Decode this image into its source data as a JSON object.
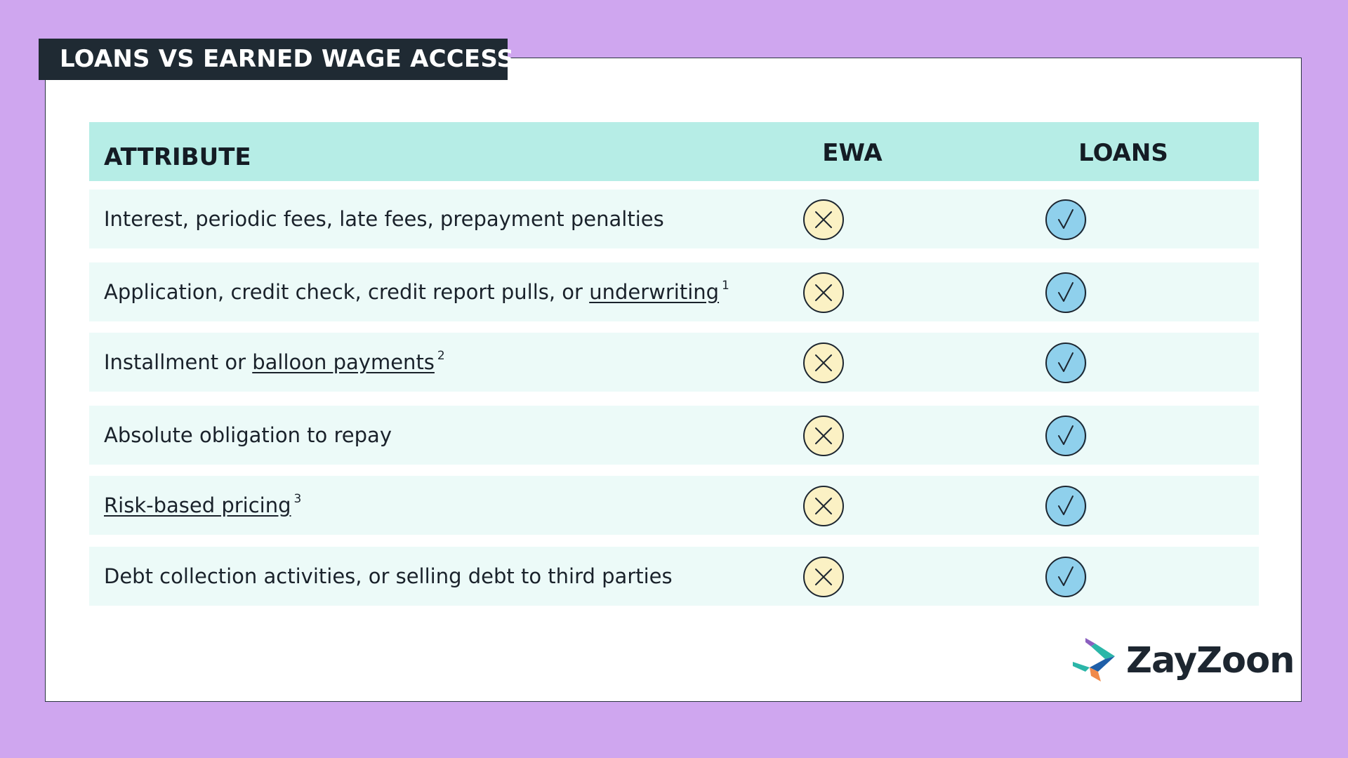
{
  "title": "LOANS VS EARNED WAGE ACCESS",
  "table": {
    "headers": {
      "attribute": "ATTRIBUTE",
      "ewa": "EWA",
      "loans": "LOANS"
    },
    "rows": [
      {
        "text": "Interest, periodic fees, late fees, prepayment penalties",
        "prefix": "",
        "link": "",
        "footnote": "",
        "ewa": "x-mark",
        "loans": "check-mark"
      },
      {
        "text": "",
        "prefix": "Application, credit check, credit report pulls, or ",
        "link": "underwriting",
        "footnote": "1",
        "ewa": "x-mark",
        "loans": "check-mark"
      },
      {
        "text": "",
        "prefix": "Installment or ",
        "link": "balloon payments",
        "footnote": "2",
        "ewa": "x-mark",
        "loans": "check-mark"
      },
      {
        "text": "Absolute obligation to repay",
        "prefix": "",
        "link": "",
        "footnote": "",
        "ewa": "x-mark",
        "loans": "check-mark"
      },
      {
        "text": "",
        "prefix": "",
        "link": "Risk-based pricing",
        "footnote": "3",
        "ewa": "x-mark",
        "loans": "check-mark"
      },
      {
        "text": "Debt collection activities, or selling debt to third parties",
        "prefix": "",
        "link": "",
        "footnote": "",
        "ewa": "x-mark",
        "loans": "check-mark"
      }
    ]
  },
  "brand": {
    "name": "ZayZoon",
    "logo_icon": "zayzoon-logo-icon"
  },
  "colors": {
    "background": "#cfa6ef",
    "title_tab": "#1f2a33",
    "header_row": "#b6ede6",
    "row_bg": "#ecfaf8",
    "x_circle": "#fbf1c4",
    "check_circle": "#8fd0ec"
  }
}
